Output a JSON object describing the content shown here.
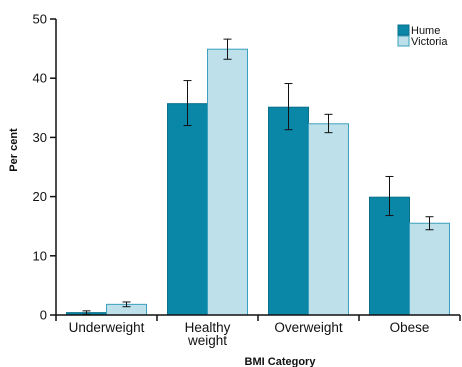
{
  "chart_data": {
    "type": "bar",
    "title": "",
    "xlabel": "BMI Category",
    "ylabel": "Per cent",
    "ylim": [
      0,
      50
    ],
    "yticks": [
      "0",
      "10",
      "20",
      "30",
      "40",
      "50"
    ],
    "categories": [
      [
        "Underweight"
      ],
      [
        "Healthy",
        "weight"
      ],
      [
        "Overweight"
      ],
      [
        "Obese"
      ]
    ],
    "series": [
      {
        "name": "Hume",
        "color": "#0a87a6",
        "values": [
          0.4,
          35.7,
          35.1,
          19.9
        ],
        "err_low": [
          0.1,
          32.0,
          31.3,
          16.8
        ],
        "err_high": [
          0.7,
          39.6,
          39.1,
          23.4
        ]
      },
      {
        "name": "Victoria",
        "color": "#bde0ea",
        "values": [
          1.8,
          44.9,
          32.3,
          15.5
        ],
        "err_low": [
          1.4,
          43.2,
          30.8,
          14.4
        ],
        "err_high": [
          2.2,
          46.6,
          33.9,
          16.6
        ]
      }
    ],
    "legend": "top-right",
    "grid": false,
    "error_bars": true
  }
}
